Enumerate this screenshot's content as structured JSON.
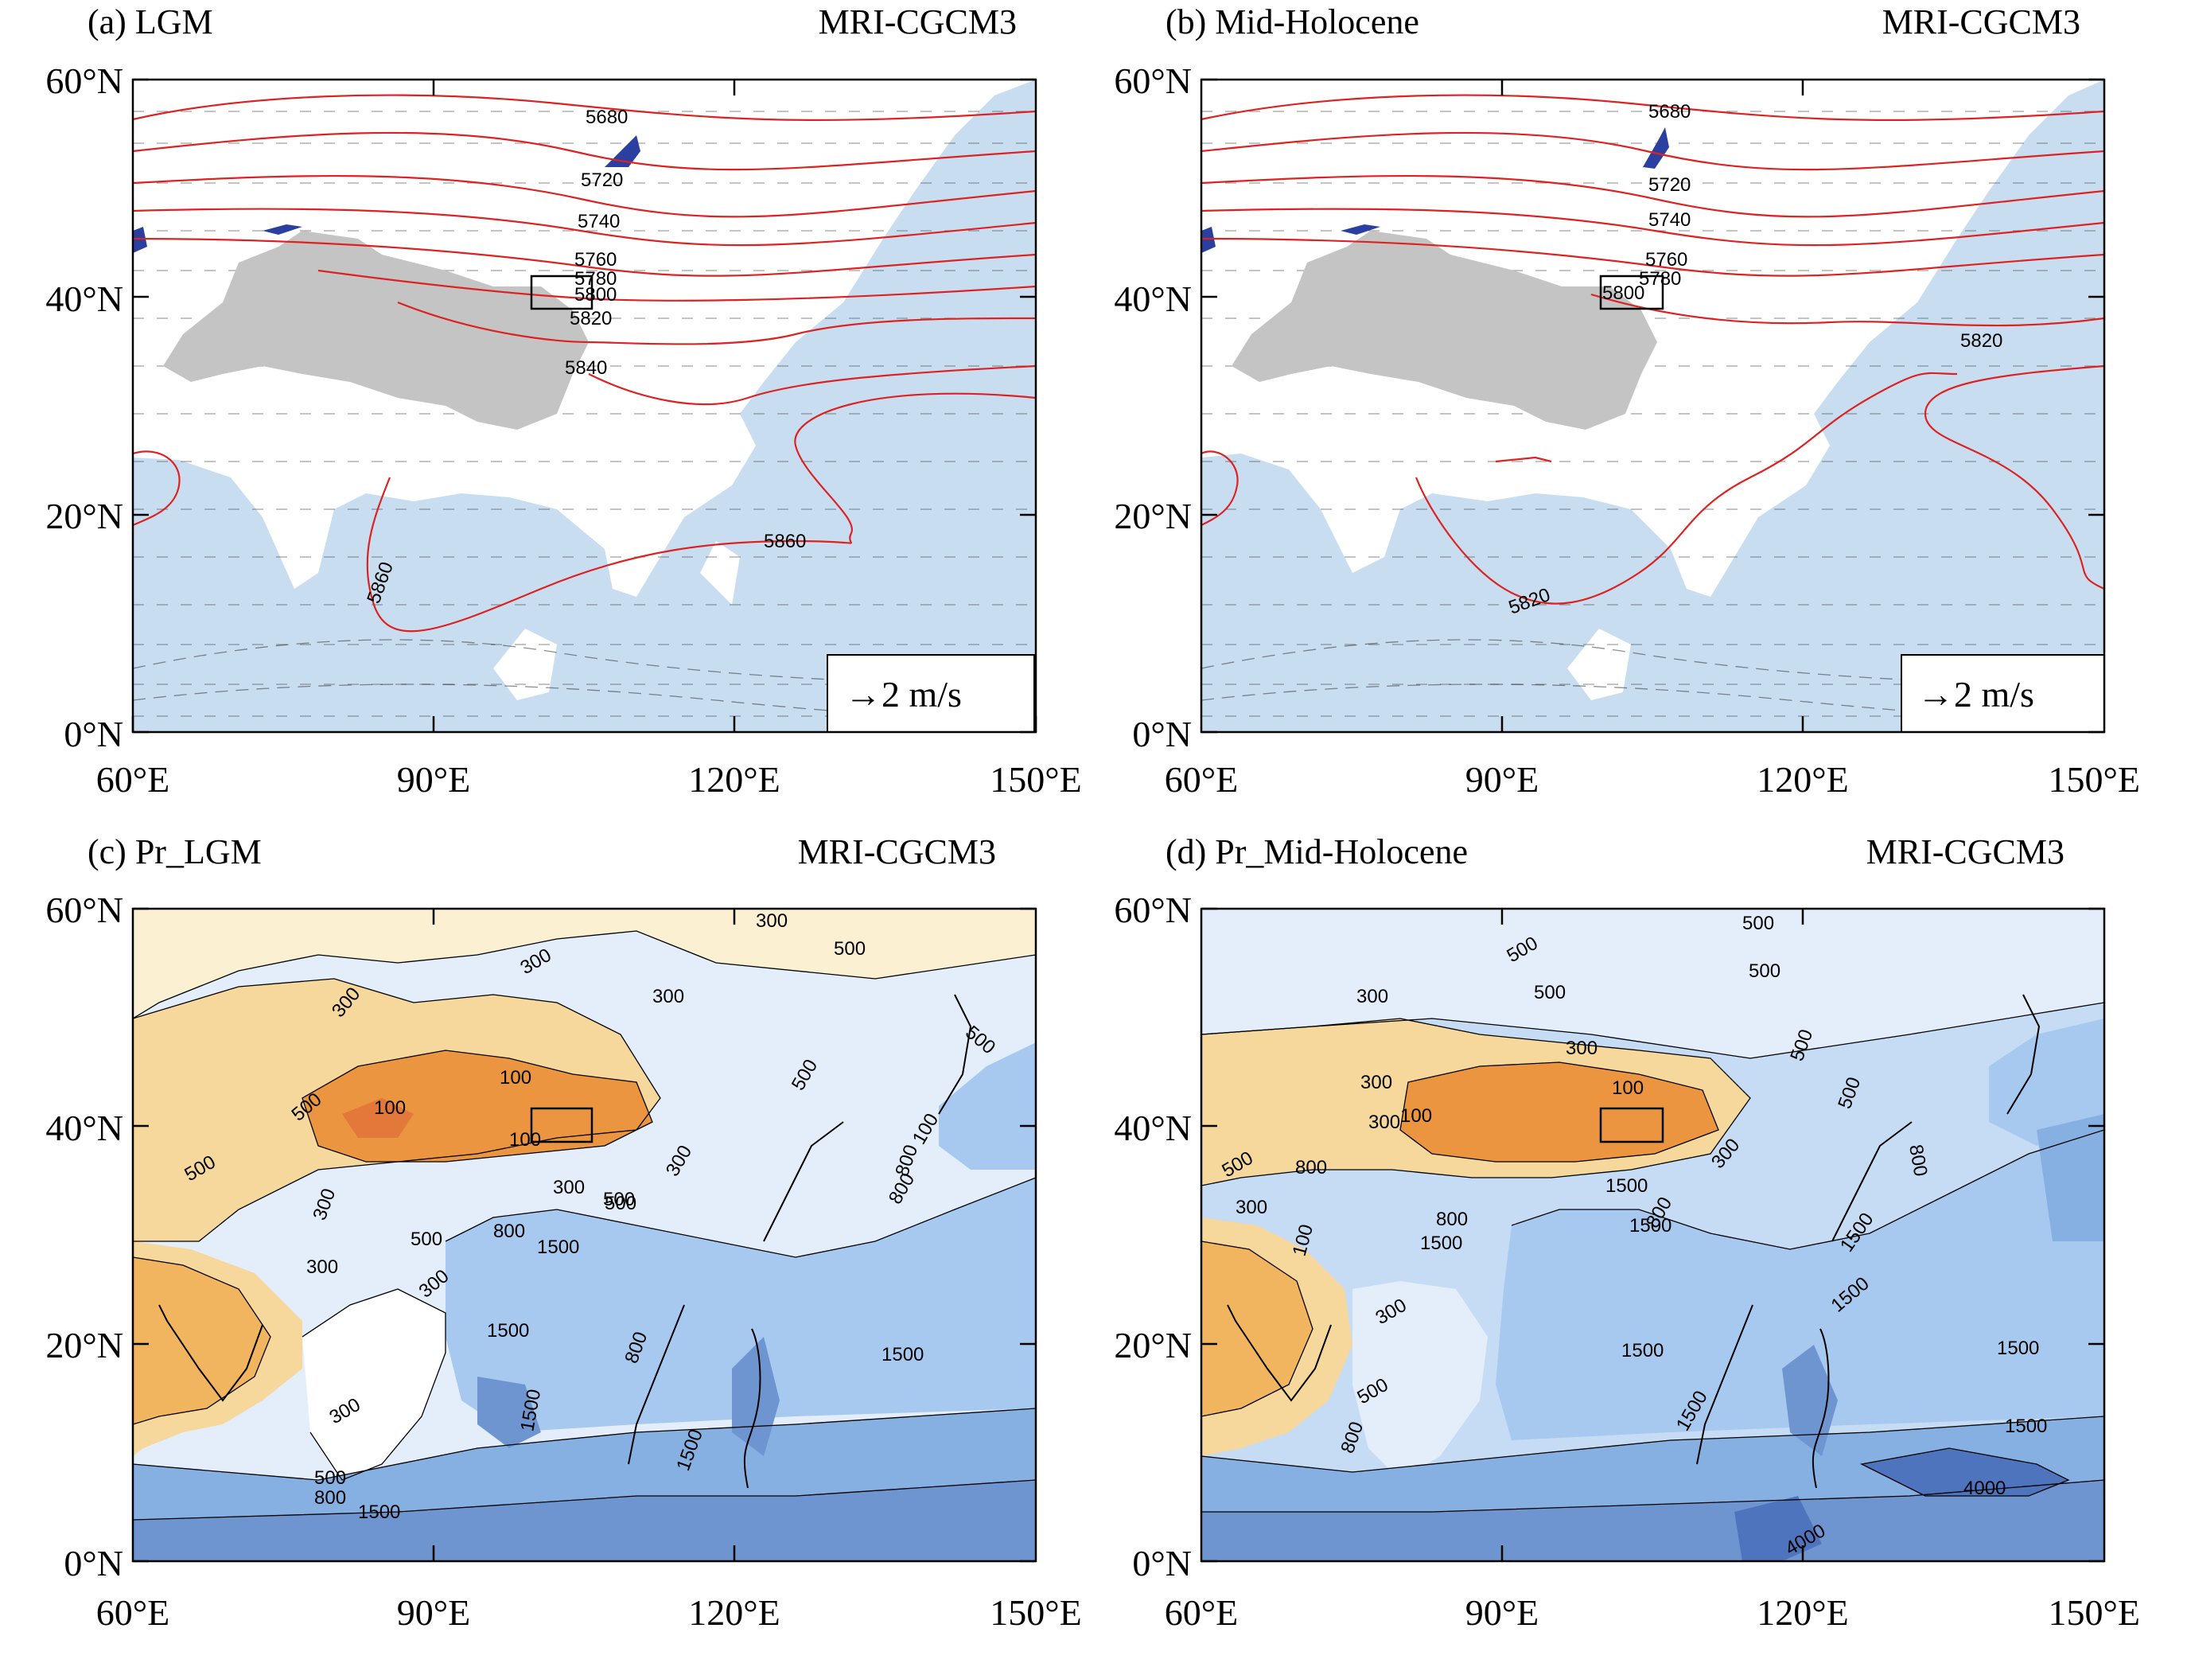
{
  "figure": {
    "panels": [
      {
        "id": "a",
        "kind": "wind",
        "title_left": "(a) LGM",
        "title_right": "MRI-CGCM3",
        "contour_labels": [
          "5680",
          "5720",
          "5740",
          "5760",
          "5780",
          "5800",
          "5820",
          "5840",
          "5860",
          "5860"
        ],
        "legend": "→2 m/s"
      },
      {
        "id": "b",
        "kind": "wind",
        "title_left": "(b) Mid-Holocene",
        "title_right": "MRI-CGCM3",
        "contour_labels": [
          "5680",
          "5720",
          "5740",
          "5760",
          "5780",
          "5800",
          "5820",
          "5820"
        ],
        "legend": "→2 m/s"
      },
      {
        "id": "c",
        "kind": "precip",
        "title_left": "(c) Pr_LGM",
        "title_right": "MRI-CGCM3",
        "contour_labels": [
          "300",
          "300",
          "300",
          "500",
          "300",
          "500",
          "100",
          "100",
          "500",
          "100",
          "500",
          "300",
          "500",
          "300",
          "500",
          "800",
          "800",
          "1500",
          "300",
          "300",
          "500",
          "300",
          "500",
          "1500",
          "800",
          "1500",
          "1500",
          "300",
          "500",
          "800",
          "1500",
          "1500",
          "800",
          "100"
        ]
      },
      {
        "id": "d",
        "kind": "precip",
        "title_left": "(d) Pr_Mid-Holocene",
        "title_right": "MRI-CGCM3",
        "contour_labels": [
          "500",
          "500",
          "500",
          "300",
          "500",
          "300",
          "300",
          "100",
          "300",
          "500",
          "800",
          "300",
          "100",
          "800",
          "1500",
          "100",
          "300",
          "1500",
          "1500",
          "800",
          "1500",
          "1500",
          "500",
          "800",
          "1500",
          "1500",
          "1500",
          "4000",
          "4000",
          "500",
          "300",
          "500",
          "800",
          "1500"
        ]
      }
    ],
    "axes": {
      "lat_ticks": [
        "0°N",
        "20°N",
        "40°N",
        "60°N"
      ],
      "lon_ticks": [
        "60°E",
        "90°E",
        "120°E",
        "150°E"
      ]
    },
    "colors": {
      "geopotential_contour": "#dd2222",
      "ocean_shading": "#c8def0",
      "tibetan_plateau_mask": "#c4c4c4",
      "low_height_fill": "#2a3fa0",
      "study_box": "#000000",
      "precip_scale": [
        "#fbf0d2",
        "#f6d79c",
        "#f1b45f",
        "#ec9540",
        "#ffffff",
        "#e4eefa",
        "#c6dcf4",
        "#a7c9ef",
        "#86b0e2",
        "#6e95d0",
        "#4e74bd"
      ]
    }
  }
}
